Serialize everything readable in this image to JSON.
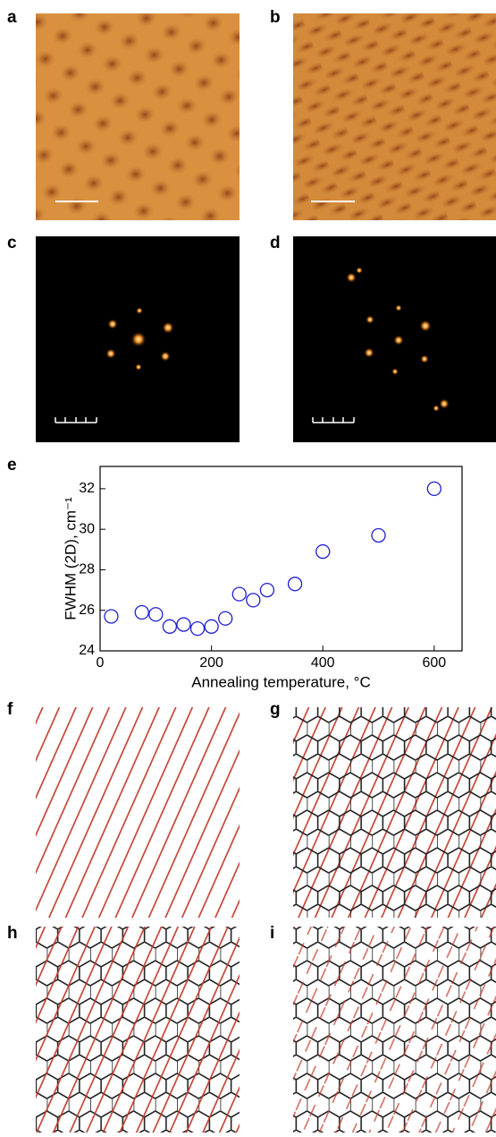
{
  "panels": [
    "a",
    "b",
    "c",
    "d",
    "e",
    "f",
    "g",
    "h",
    "i"
  ],
  "chart_data": {
    "type": "scatter",
    "x_label": "Annealing temperature, °C",
    "y_label": "FWHM (2D), cm⁻¹",
    "x": [
      20,
      75,
      100,
      125,
      150,
      175,
      200,
      225,
      250,
      275,
      300,
      350,
      400,
      500,
      600
    ],
    "values": [
      25.7,
      25.9,
      25.8,
      25.2,
      25.3,
      25.1,
      25.2,
      25.6,
      26.8,
      26.5,
      27.0,
      27.3,
      28.9,
      29.7,
      32.0
    ],
    "color": "#1f1fd0",
    "xlim": [
      0,
      650
    ],
    "xticks": [
      0,
      200,
      400,
      600
    ],
    "ylim": [
      24,
      33.1
    ],
    "yticks": [
      24,
      26,
      28,
      30,
      32
    ]
  }
}
